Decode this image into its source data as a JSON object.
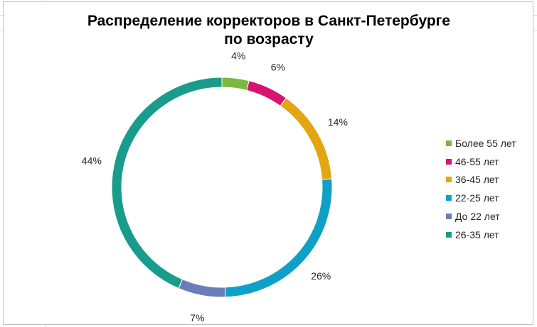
{
  "chart_data": {
    "type": "pie",
    "style": "doughnut",
    "title_lines": [
      "Распределение корректоров в Санкт-Петербурге",
      "по возрасту"
    ],
    "slices": [
      {
        "label": "Более 55 лет",
        "value": 4,
        "value_label": "4%",
        "color": "#7ab83f"
      },
      {
        "label": "46-55 лет",
        "value": 6,
        "value_label": "6%",
        "color": "#d6136f"
      },
      {
        "label": "36-45 лет",
        "value": 14,
        "value_label": "14%",
        "color": "#e3a612"
      },
      {
        "label": "22-25 лет",
        "value": 26,
        "value_label": "26%",
        "color": "#0fa0c8"
      },
      {
        "label": "До 22 лет",
        "value": 7,
        "value_label": "7%",
        "color": "#6c7cbb"
      },
      {
        "label": "26-35 лет",
        "value": 44,
        "value_label": "44%",
        "color": "#1a9c8c"
      }
    ],
    "legend_position": "right"
  }
}
